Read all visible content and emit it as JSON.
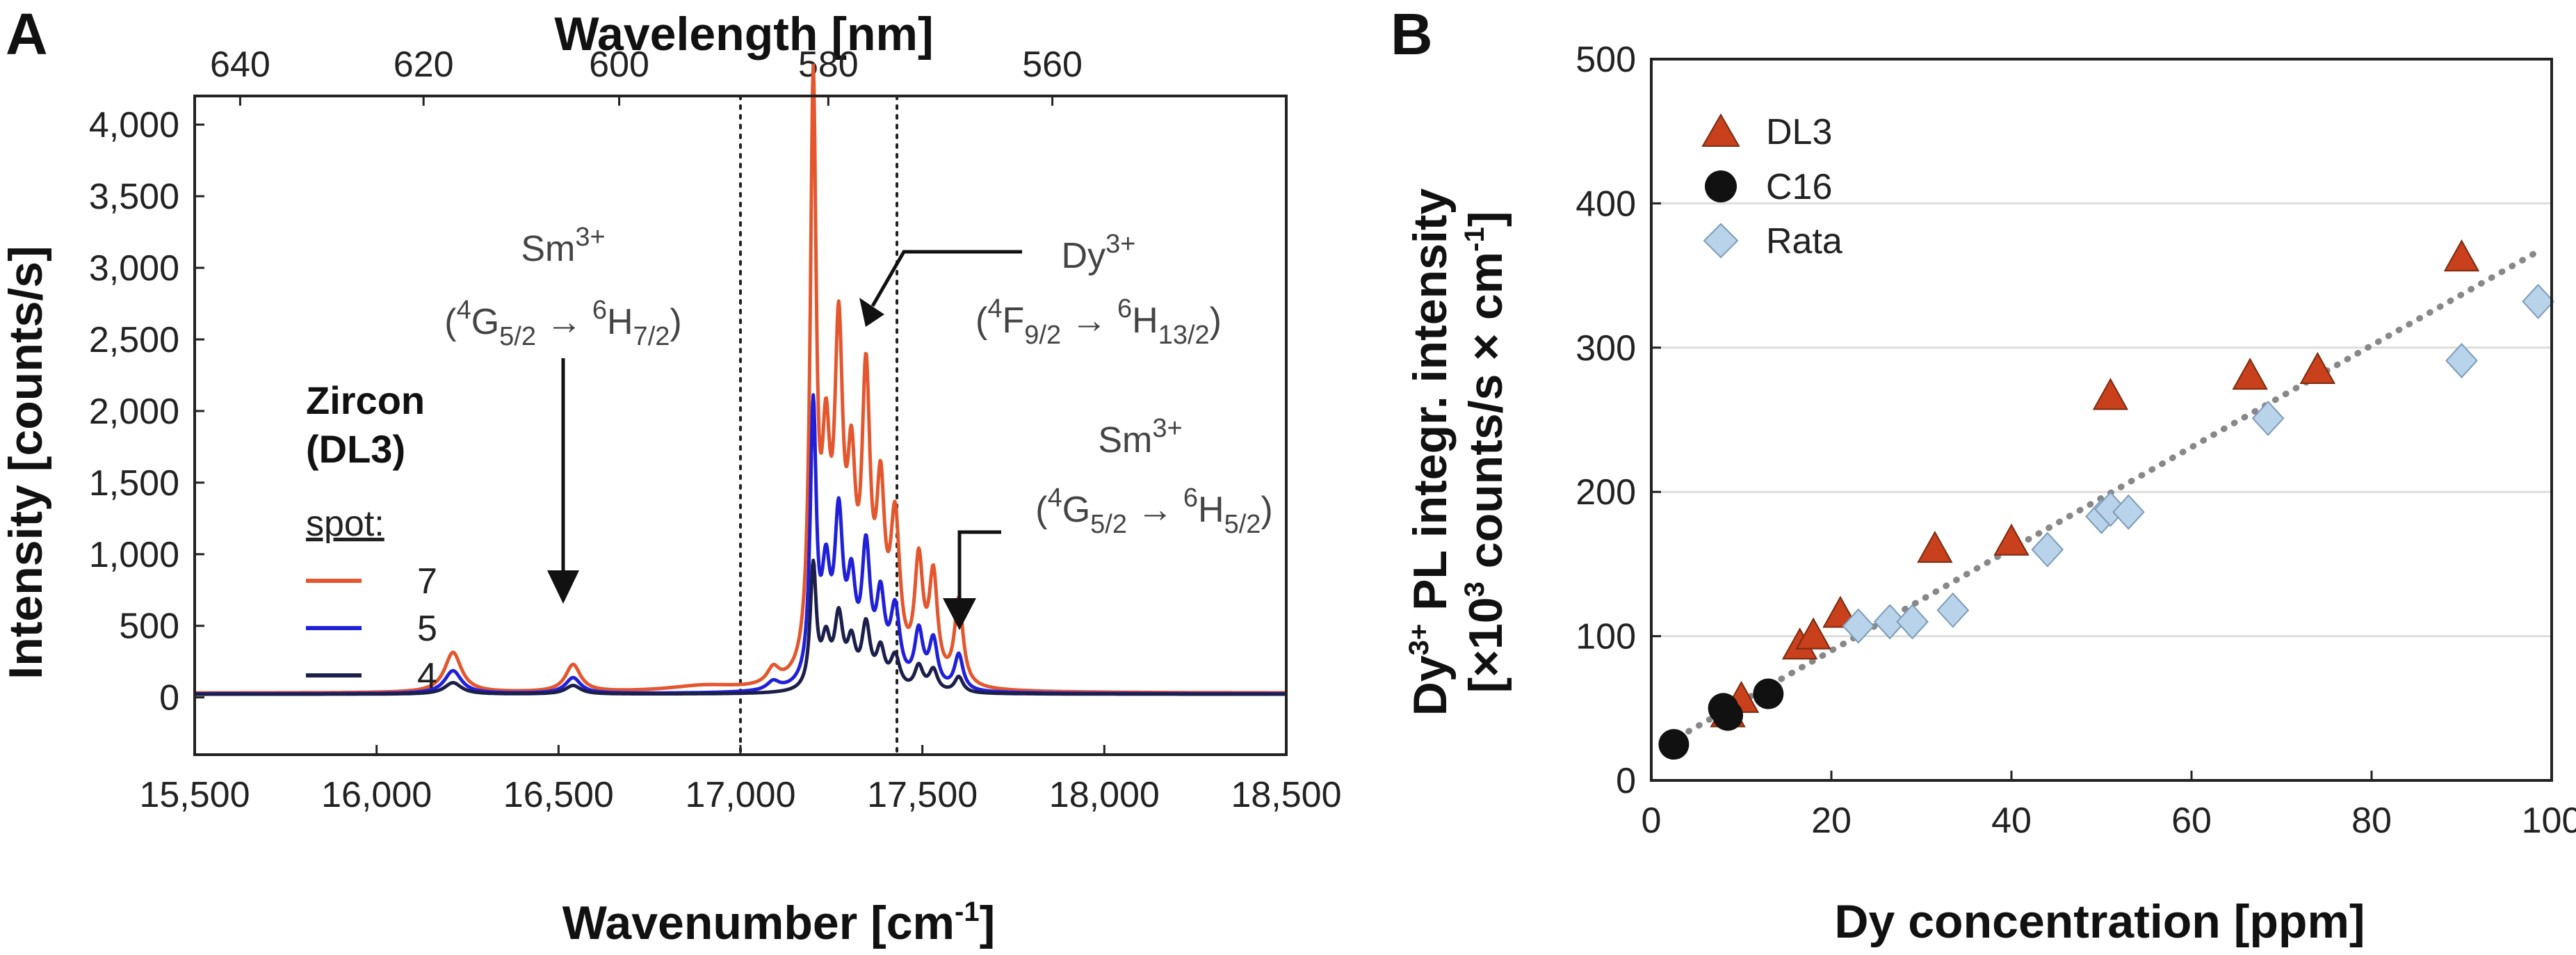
{
  "colors": {
    "spot7": "#e4572e",
    "spot5": "#2020d8",
    "spot4": "#1b1f4a",
    "dl3": "#c8401c",
    "c16": "#111111",
    "rata": "#b9d3ea",
    "rata_edge": "#7d9bb8",
    "fit": "#888888"
  },
  "chart_data": [
    {
      "panel": "A",
      "type": "line",
      "xlabel": "Wavenumber [cm",
      "xlabel_sup": "-1",
      "xlabel_close": "]",
      "x2label": "Wavelength [nm]",
      "ylabel": "Intensity [counts/s]",
      "xlim": [
        15500,
        18500
      ],
      "ylim": [
        -400,
        4200
      ],
      "x_ticks": [
        15500,
        16000,
        16500,
        17000,
        17500,
        18000,
        18500
      ],
      "x_tick_labels": [
        "15,500",
        "16,000",
        "16,500",
        "17,000",
        "17,500",
        "18,000",
        "18,500"
      ],
      "y_ticks": [
        0,
        500,
        1000,
        1500,
        2000,
        2500,
        3000,
        3500,
        4000
      ],
      "y_tick_labels": [
        "0",
        "500",
        "1,000",
        "1,500",
        "2,000",
        "2,500",
        "3,000",
        "3,500",
        "4,000"
      ],
      "top_ticks_nm": [
        640,
        620,
        600,
        580,
        560
      ],
      "top_tick_labels": [
        "640",
        "620",
        "600",
        "580",
        "560"
      ],
      "dotted_lines_cm": [
        17000,
        17430
      ],
      "legend": {
        "title1": "Zircon",
        "title2": "(DL3)",
        "subtitle": "spot:",
        "labels": [
          "7",
          "5",
          "4"
        ]
      },
      "annotations": [
        {
          "ion": "Sm",
          "ion_sup": "3+",
          "trans": [
            "(",
            "4",
            "G",
            "5/2",
            " → ",
            "6",
            "H",
            "7/2",
            ")"
          ]
        },
        {
          "ion": "Dy",
          "ion_sup": "3+",
          "trans": [
            "(",
            "4",
            "F",
            "9/2",
            " → ",
            "6",
            "H",
            "13/2",
            ")"
          ]
        },
        {
          "ion": "Sm",
          "ion_sup": "3+",
          "trans": [
            "(",
            "4",
            "G",
            "5/2",
            " → ",
            "6",
            "H",
            "5/2",
            ")"
          ]
        }
      ],
      "series": [
        {
          "name": "7",
          "baseline": 30,
          "peaks": [
            [
              16210,
              280,
              28
            ],
            [
              16540,
              190,
              25
            ],
            [
              16900,
              40,
              120
            ],
            [
              17090,
              110,
              20
            ],
            [
              17200,
              4050,
              10
            ],
            [
              17235,
              1350,
              14
            ],
            [
              17270,
              2200,
              14
            ],
            [
              17305,
              1200,
              14
            ],
            [
              17345,
              1950,
              14
            ],
            [
              17385,
              1150,
              14
            ],
            [
              17425,
              1050,
              16
            ],
            [
              17490,
              800,
              14
            ],
            [
              17530,
              720,
              14
            ],
            [
              17600,
              600,
              14
            ]
          ]
        },
        {
          "name": "5",
          "baseline": 25,
          "peaks": [
            [
              16210,
              160,
              28
            ],
            [
              16540,
              110,
              25
            ],
            [
              17090,
              60,
              20
            ],
            [
              17200,
              1920,
              10
            ],
            [
              17235,
              700,
              14
            ],
            [
              17270,
              1100,
              14
            ],
            [
              17305,
              620,
              14
            ],
            [
              17345,
              900,
              14
            ],
            [
              17385,
              560,
              14
            ],
            [
              17425,
              520,
              16
            ],
            [
              17490,
              380,
              14
            ],
            [
              17530,
              330,
              14
            ],
            [
              17600,
              250,
              14
            ]
          ]
        },
        {
          "name": "4",
          "baseline": 22,
          "peaks": [
            [
              16210,
              80,
              28
            ],
            [
              16540,
              60,
              25
            ],
            [
              17200,
              860,
              10
            ],
            [
              17235,
              320,
              14
            ],
            [
              17270,
              480,
              14
            ],
            [
              17305,
              300,
              14
            ],
            [
              17345,
              430,
              14
            ],
            [
              17385,
              260,
              14
            ],
            [
              17425,
              230,
              16
            ],
            [
              17490,
              170,
              14
            ],
            [
              17530,
              150,
              14
            ],
            [
              17600,
              110,
              14
            ]
          ]
        }
      ]
    },
    {
      "panel": "B",
      "type": "scatter",
      "xlabel": "Dy concentration [ppm]",
      "ylabel_line1": [
        "Dy",
        "3+",
        " PL integr. intensity"
      ],
      "ylabel_line2": [
        "[×10",
        "3",
        " counts/s × cm",
        "-1",
        "]"
      ],
      "xlim": [
        0,
        100
      ],
      "ylim": [
        0,
        500
      ],
      "x_ticks": [
        0,
        20,
        40,
        60,
        80,
        100
      ],
      "x_tick_labels": [
        "0",
        "20",
        "40",
        "60",
        "80",
        "100"
      ],
      "y_ticks": [
        0,
        100,
        200,
        300,
        400,
        500
      ],
      "y_tick_labels": [
        "0",
        "100",
        "200",
        "300",
        "400",
        "500"
      ],
      "fit_line": {
        "x": [
          3,
          98
        ],
        "y": [
          30,
          365
        ]
      },
      "series": [
        {
          "name": "DL3",
          "marker": "triangle",
          "x": [
            8.5,
            10,
            16.5,
            18,
            21,
            31.5,
            40,
            51,
            66.5,
            74,
            90
          ],
          "y": [
            46,
            56,
            93,
            100,
            115,
            160,
            165,
            266,
            280,
            284,
            362
          ]
        },
        {
          "name": "C16",
          "marker": "circle",
          "x": [
            2.5,
            8,
            8.5,
            13
          ],
          "y": [
            25,
            50,
            45,
            60
          ]
        },
        {
          "name": "Rata",
          "marker": "diamond",
          "x": [
            23,
            26.5,
            29,
            33.5,
            44,
            50,
            51,
            53,
            68.5,
            90,
            98.5
          ],
          "y": [
            107,
            110,
            110,
            118,
            160,
            183,
            188,
            186,
            251,
            291,
            332
          ]
        }
      ]
    }
  ],
  "panels": {
    "a_letter": "A",
    "b_letter": "B"
  }
}
